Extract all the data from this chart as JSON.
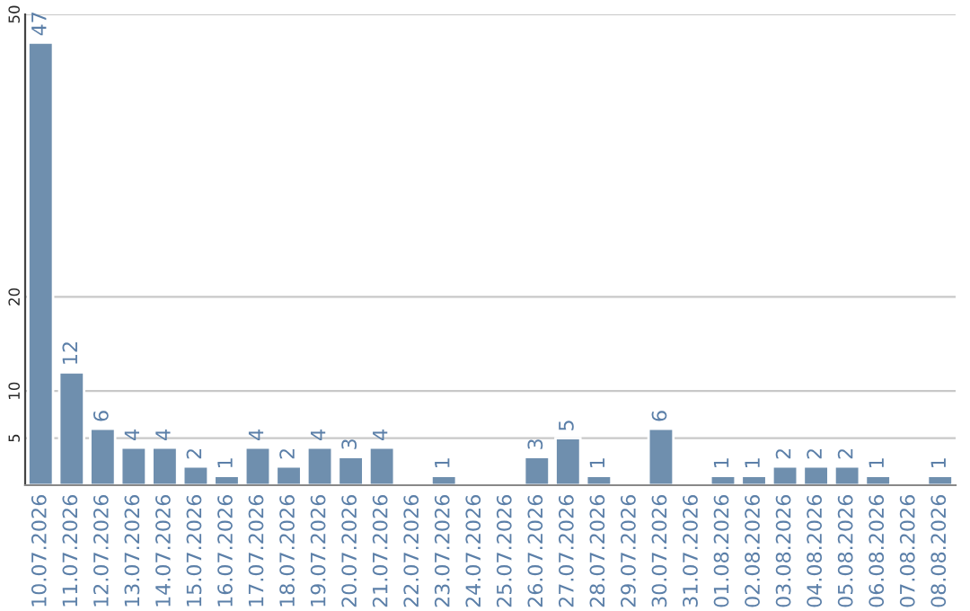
{
  "chart_data": {
    "type": "bar",
    "categories": [
      "10.07.2026",
      "11.07.2026",
      "12.07.2026",
      "13.07.2026",
      "14.07.2026",
      "15.07.2026",
      "16.07.2026",
      "17.07.2026",
      "18.07.2026",
      "19.07.2026",
      "20.07.2026",
      "21.07.2026",
      "22.07.2026",
      "23.07.2026",
      "24.07.2026",
      "25.07.2026",
      "26.07.2026",
      "27.07.2026",
      "28.07.2026",
      "29.07.2026",
      "30.07.2026",
      "31.07.2026",
      "01.08.2026",
      "02.08.2026",
      "03.08.2026",
      "04.08.2026",
      "05.08.2026",
      "06.08.2026",
      "07.08.2026",
      "08.08.2026"
    ],
    "values": [
      47,
      12,
      6,
      4,
      4,
      2,
      1,
      4,
      2,
      4,
      3,
      4,
      null,
      1,
      null,
      null,
      3,
      5,
      1,
      null,
      6,
      null,
      1,
      1,
      2,
      2,
      2,
      1,
      null,
      1
    ],
    "color": "#6f8fae",
    "ylim": [
      0,
      50
    ],
    "yticks": [
      5,
      10,
      20,
      50
    ],
    "grid": "y",
    "data_labels": true
  }
}
